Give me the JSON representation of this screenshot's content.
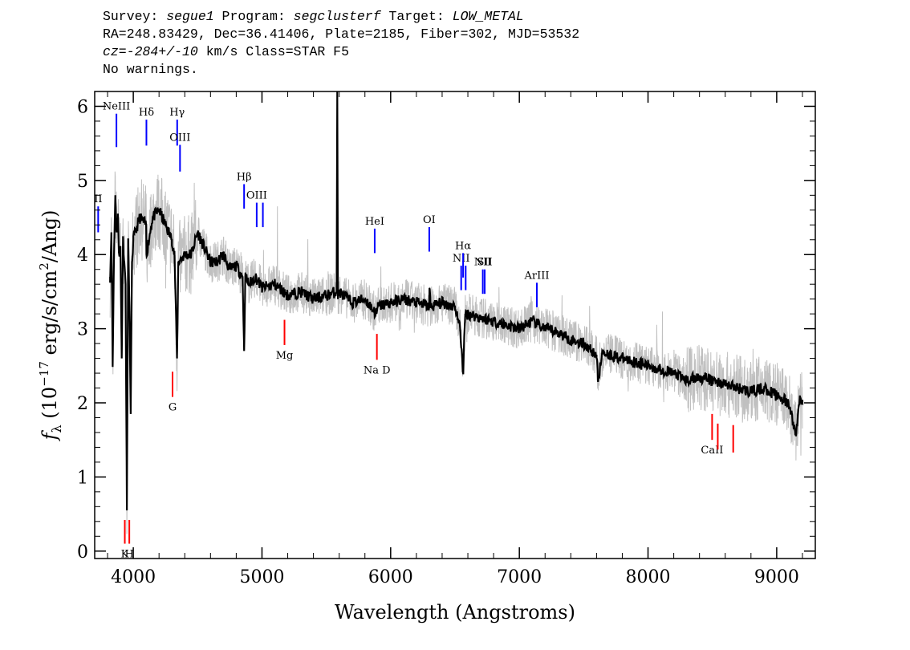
{
  "header": {
    "survey_label": "Survey:",
    "survey": "segue1",
    "program_label": "Program:",
    "program": "segclusterf",
    "target_label": "Target:",
    "target": "LOW_METAL",
    "line2": "RA=248.83429, Dec=36.41406, Plate=2185, Fiber=302, MJD=53532",
    "cz_label": "cz=",
    "cz": "-284+/-10",
    "cz_tail": " km/s Class=STAR F5",
    "line4": "No warnings."
  },
  "chart_data": {
    "type": "line",
    "title": "",
    "xlabel": "Wavelength (Angstroms)",
    "ylabel": "f_λ (10^-17 erg/s/cm^2/Ang)",
    "xlim": [
      3700,
      9300
    ],
    "ylim": [
      -0.1,
      6.2
    ],
    "x_ticks": [
      4000,
      5000,
      6000,
      7000,
      8000,
      9000
    ],
    "y_ticks": [
      0,
      1,
      2,
      3,
      4,
      5,
      6
    ],
    "colors": {
      "smoothed": "#000000",
      "raw": "#c0c0c0",
      "emission": "#0000ff",
      "absorption": "#ff0000"
    },
    "series": [
      {
        "role": "smoothed",
        "x": [
          3820,
          3830,
          3840,
          3850,
          3860,
          3870,
          3880,
          3890,
          3900,
          3910,
          3920,
          3930,
          3940,
          3950,
          3960,
          3970,
          3980,
          3990,
          4000,
          4050,
          4100,
          4102,
          4150,
          4200,
          4250,
          4300,
          4320,
          4340,
          4350,
          4400,
          4450,
          4500,
          4550,
          4600,
          4650,
          4700,
          4750,
          4800,
          4850,
          4861,
          4870,
          4900,
          4950,
          5000,
          5100,
          5200,
          5300,
          5400,
          5500,
          5580,
          5585,
          5590,
          5600,
          5700,
          5800,
          5890,
          5900,
          6000,
          6100,
          6200,
          6300,
          6302,
          6310,
          6400,
          6500,
          6540,
          6563,
          6580,
          6600,
          6700,
          6800,
          6900,
          7000,
          7100,
          7200,
          7300,
          7400,
          7500,
          7600,
          7610,
          7650,
          7700,
          7800,
          7900,
          8000,
          8100,
          8200,
          8300,
          8400,
          8500,
          8600,
          8700,
          8800,
          8900,
          9000,
          9050,
          9100,
          9150,
          9180,
          9200
        ],
        "y": [
          3.7,
          4.3,
          2.5,
          4.0,
          4.8,
          4.3,
          4.5,
          4.0,
          4.1,
          2.6,
          4.2,
          3.9,
          3.6,
          0.55,
          4.2,
          3.3,
          1.85,
          3.9,
          4.2,
          4.5,
          4.4,
          4.0,
          4.5,
          4.6,
          4.4,
          4.2,
          4.0,
          2.6,
          3.9,
          4.0,
          4.0,
          4.3,
          4.1,
          3.9,
          3.9,
          4.0,
          3.8,
          3.85,
          3.7,
          2.7,
          3.7,
          3.6,
          3.7,
          3.55,
          3.6,
          3.45,
          3.5,
          3.4,
          3.45,
          3.5,
          6.2,
          3.4,
          3.5,
          3.35,
          3.4,
          3.2,
          3.3,
          3.35,
          3.4,
          3.35,
          3.3,
          3.55,
          3.3,
          3.35,
          3.3,
          3.0,
          2.4,
          3.2,
          3.2,
          3.15,
          3.1,
          3.05,
          3.0,
          3.1,
          3.0,
          2.95,
          2.85,
          2.8,
          2.65,
          2.3,
          2.7,
          2.65,
          2.6,
          2.55,
          2.5,
          2.45,
          2.4,
          2.3,
          2.35,
          2.3,
          2.25,
          2.2,
          2.15,
          2.2,
          2.1,
          2.05,
          1.95,
          1.55,
          2.1,
          2.0
        ]
      }
    ],
    "lines": [
      {
        "label": "NeIII",
        "kind": "emission",
        "x": 3869,
        "y_top": 5.9,
        "y_bottom": 5.45
      },
      {
        "label": "Hδ",
        "kind": "emission",
        "x": 4102,
        "y_top": 5.82,
        "y_bottom": 5.47
      },
      {
        "label": "Hγ",
        "kind": "emission",
        "x": 4341,
        "y_top": 5.82,
        "y_bottom": 5.47
      },
      {
        "label": "OIII",
        "kind": "emission",
        "x": 4363,
        "y_top": 5.48,
        "y_bottom": 5.12
      },
      {
        "label": "Hβ",
        "kind": "emission",
        "x": 4861,
        "y_top": 4.95,
        "y_bottom": 4.62
      },
      {
        "label": "OIII",
        "kind": "emission",
        "x": 4959,
        "y_top": 4.7,
        "y_bottom": 4.37
      },
      {
        "label": "",
        "kind": "emission",
        "x": 5007,
        "y_top": 4.7,
        "y_bottom": 4.37
      },
      {
        "label": "II",
        "kind": "emission",
        "x": 3727,
        "y_top": 4.65,
        "y_bottom": 4.3
      },
      {
        "label": "HeI",
        "kind": "emission",
        "x": 5876,
        "y_top": 4.35,
        "y_bottom": 4.02
      },
      {
        "label": "OI",
        "kind": "emission",
        "x": 6300,
        "y_top": 4.37,
        "y_bottom": 4.04
      },
      {
        "label": "NII",
        "kind": "emission",
        "x": 6548,
        "y_top": 3.85,
        "y_bottom": 3.52
      },
      {
        "label": "Hα",
        "kind": "emission",
        "x": 6563,
        "y_top": 4.02,
        "y_bottom": 3.69
      },
      {
        "label": "",
        "kind": "emission",
        "x": 6583,
        "y_top": 3.85,
        "y_bottom": 3.52
      },
      {
        "label": "NII",
        "kind": "emission",
        "x": 6716,
        "y_top": 3.8,
        "y_bottom": 3.47
      },
      {
        "label": "SII",
        "kind": "emission",
        "x": 6731,
        "y_top": 3.8,
        "y_bottom": 3.47
      },
      {
        "label": "ArIII",
        "kind": "emission",
        "x": 7136,
        "y_top": 3.62,
        "y_bottom": 3.29
      },
      {
        "label": "Mg",
        "kind": "absorption",
        "x": 5175,
        "y_top": 3.12,
        "y_bottom": 2.78
      },
      {
        "label": "G",
        "kind": "absorption",
        "x": 4305,
        "y_top": 2.42,
        "y_bottom": 2.08
      },
      {
        "label": "Na D",
        "kind": "absorption",
        "x": 5893,
        "y_top": 2.93,
        "y_bottom": 2.58
      },
      {
        "label": "CaII",
        "kind": "absorption",
        "x": 8498,
        "y_top": 1.85,
        "y_bottom": 1.5
      },
      {
        "label": "",
        "kind": "absorption",
        "x": 8542,
        "y_top": 1.72,
        "y_bottom": 1.37
      },
      {
        "label": "",
        "kind": "absorption",
        "x": 8662,
        "y_top": 1.7,
        "y_bottom": 1.33
      },
      {
        "label": "K",
        "kind": "absorption",
        "x": 3934,
        "y_top": 0.42,
        "y_bottom": 0.1
      },
      {
        "label": "H",
        "kind": "absorption",
        "x": 3969,
        "y_top": 0.42,
        "y_bottom": 0.1
      }
    ]
  }
}
